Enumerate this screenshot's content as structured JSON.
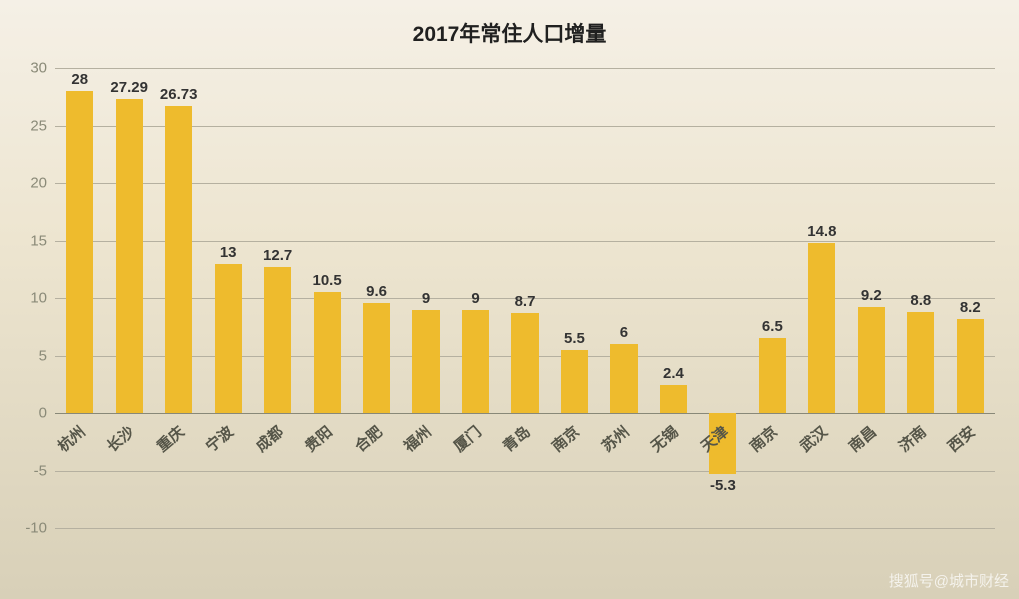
{
  "chart": {
    "type": "bar",
    "title": "2017年常住人口增量",
    "title_fontsize": 21,
    "title_color": "#202020",
    "background_gradient": [
      "#f5f0e6",
      "#ede5d0",
      "#d8d0b8"
    ],
    "categories": [
      "杭州",
      "长沙",
      "重庆",
      "宁波",
      "成都",
      "贵阳",
      "合肥",
      "福州",
      "厦门",
      "青岛",
      "南京",
      "苏州",
      "无锡",
      "天津",
      "南京",
      "武汉",
      "南昌",
      "济南",
      "西安"
    ],
    "values": [
      28,
      27.29,
      26.73,
      13,
      12.7,
      10.5,
      9.6,
      9,
      9,
      8.7,
      5.5,
      6,
      2.4,
      -5.3,
      6.5,
      14.8,
      9.2,
      8.8,
      8.2
    ],
    "bar_color": "#eebb2d",
    "bar_width_ratio": 0.55,
    "y_axis": {
      "min": -10,
      "max": 30,
      "tick_step": 5,
      "label_color": "#8a8a78",
      "label_fontsize": 15
    },
    "gridline_color": "#b5b0a0",
    "axis_color": "#888878",
    "x_label_rotation": -40,
    "x_label_color": "#555548",
    "value_label_color": "#333333",
    "value_label_fontsize": 15
  },
  "watermark": {
    "badge": "搜狐",
    "text": "搜狐号@城市财经"
  }
}
